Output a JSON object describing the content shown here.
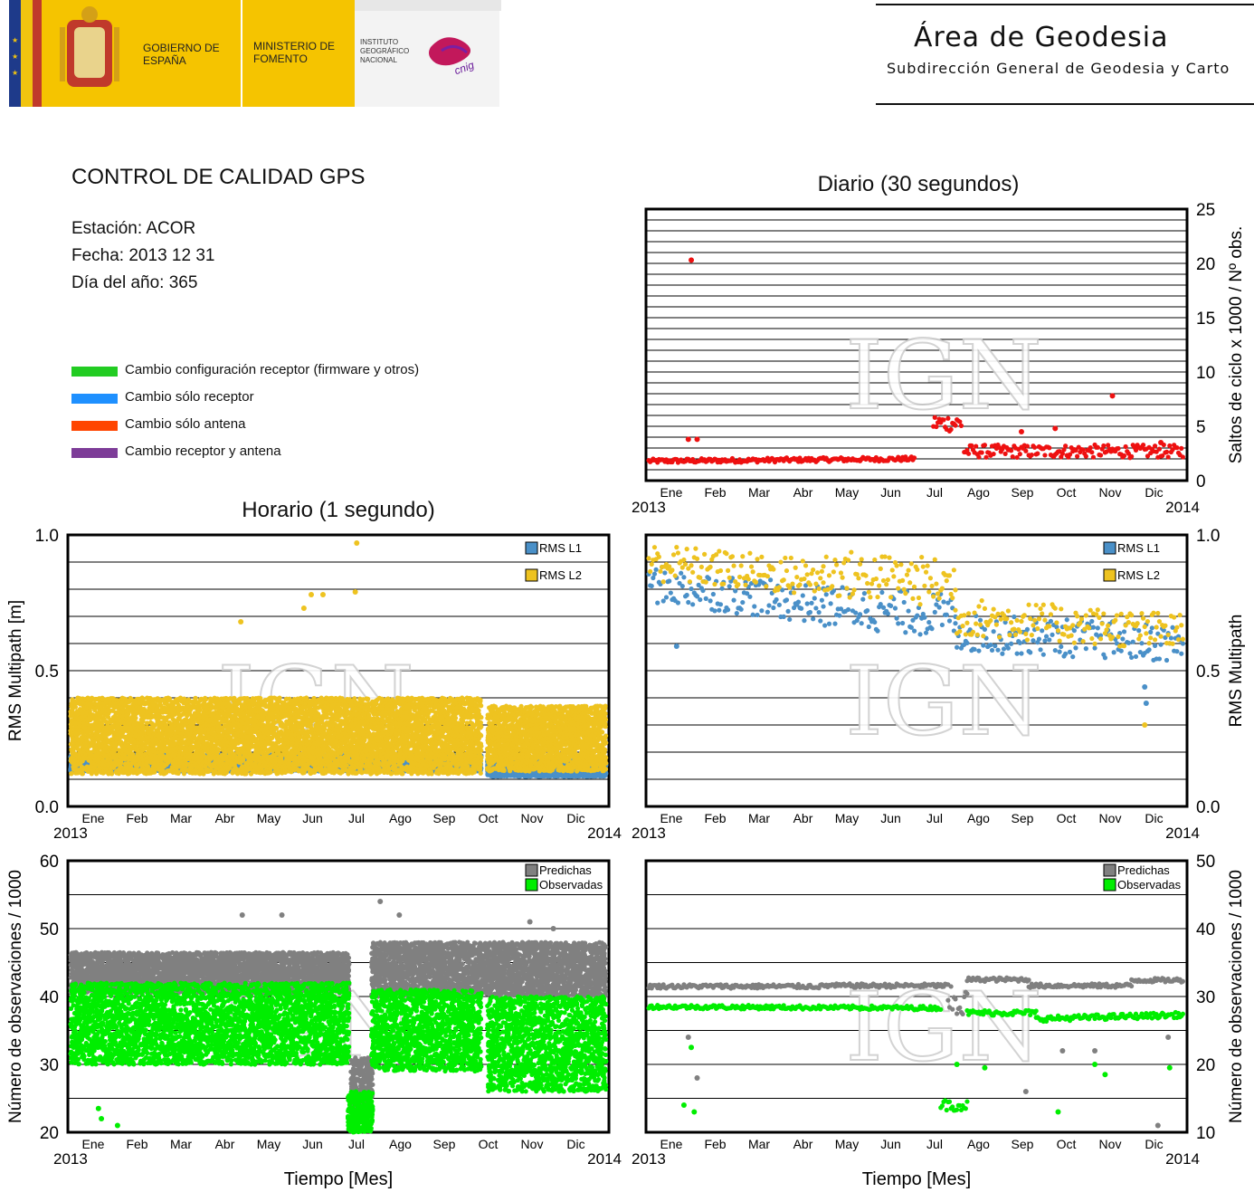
{
  "header": {
    "gobierno": "GOBIERNO DE ESPAÑA",
    "ministerio": "MINISTERIO DE FOMENTO",
    "instituto": "INSTITUTO GEOGRÁFICO NACIONAL",
    "cnig": "cnig",
    "area_title": "Área de Geodesia",
    "area_subtitle": "Subdirección General de Geodesia y Carto"
  },
  "info": {
    "title": "CONTROL DE CALIDAD GPS",
    "station": "Estación: ACOR",
    "date": "Fecha: 2013 12 31",
    "doy": "Día del año: 365"
  },
  "legend": [
    {
      "label": "Cambio configuración receptor (firmware y otros)",
      "color": "#22cc22"
    },
    {
      "label": "Cambio sólo receptor",
      "color": "#1e90ff"
    },
    {
      "label": "Cambio sólo antena",
      "color": "#ff4500"
    },
    {
      "label": "Cambio receptor y antena",
      "color": "#7d3c98"
    }
  ],
  "section_titles": {
    "daily": "Diario (30 segundos)",
    "hourly": "Horario (1 segundo)"
  },
  "months": [
    "Ene",
    "Feb",
    "Mar",
    "Abr",
    "May",
    "Jun",
    "Jul",
    "Ago",
    "Sep",
    "Oct",
    "Nov",
    "Dic"
  ],
  "year_start": "2013",
  "year_end": "2014",
  "watermark": "IGN",
  "chart_data": [
    {
      "id": "daily-cycle-slips",
      "type": "scatter",
      "ylabel": "Saltos de ciclo x 1000 / Nº obs.",
      "ylim": [
        0,
        25
      ],
      "yticks": [
        0,
        5,
        10,
        15,
        20,
        25
      ],
      "x_unit": "day of year 2013",
      "series": [
        {
          "color": "#ee1111",
          "segments": [
            {
              "x0": 1,
              "x1": 182,
              "y0": 1.8,
              "y1": 2.0,
              "jitter": 0.2
            },
            {
              "x0": 195,
              "x1": 214,
              "y0": 5.3,
              "y1": 5.3,
              "jitter": 0.8
            },
            {
              "x0": 216,
              "x1": 365,
              "y0": 2.7,
              "y1": 2.7,
              "jitter": 0.6
            }
          ],
          "outliers": [
            [
              30,
              20.3
            ],
            [
              28,
              3.8
            ],
            [
              34,
              3.8
            ],
            [
              255,
              4.5
            ],
            [
              278,
              4.8
            ],
            [
              317,
              7.8
            ],
            [
              350,
              3.5
            ]
          ]
        }
      ]
    },
    {
      "id": "hourly-rms-multipath",
      "type": "scatter",
      "ylabel": "RMS Multipath [m]",
      "ylim": [
        0.0,
        1.0
      ],
      "yticks": [
        0.0,
        0.5,
        1.0
      ],
      "legend": [
        "RMS L1",
        "RMS L2"
      ],
      "series": [
        {
          "name": "RMS L1",
          "color": "#4a90c8",
          "segments": [
            {
              "x0": 1,
              "x1": 280,
              "y0": 0.16,
              "y1": 0.16,
              "jitter": 0.03
            },
            {
              "x0": 285,
              "x1": 365,
              "y0": 0.14,
              "y1": 0.14,
              "jitter": 0.03
            }
          ]
        },
        {
          "name": "RMS L2",
          "color": "#eec320",
          "segments": [
            {
              "x0": 1,
              "x1": 280,
              "y0": 0.26,
              "y1": 0.26,
              "jitter": 0.14
            },
            {
              "x0": 285,
              "x1": 365,
              "y0": 0.25,
              "y1": 0.25,
              "jitter": 0.12
            }
          ],
          "outliers": [
            [
              165,
              0.78
            ],
            [
              173,
              0.78
            ],
            [
              195,
              0.79
            ],
            [
              196,
              0.97
            ],
            [
              160,
              0.73
            ],
            [
              117,
              0.68
            ]
          ]
        }
      ]
    },
    {
      "id": "daily-rms-multipath",
      "type": "scatter",
      "ylabel": "RMS Multipath",
      "ylim": [
        0.0,
        1.0
      ],
      "yticks": [
        0.0,
        0.5,
        1.0
      ],
      "legend": [
        "RMS L1",
        "RMS L2"
      ],
      "series": [
        {
          "name": "RMS L1",
          "color": "#4a90c8",
          "segments": [
            {
              "x0": 1,
              "x1": 120,
              "y0": 0.82,
              "y1": 0.74,
              "jitter": 0.07
            },
            {
              "x0": 120,
              "x1": 210,
              "y0": 0.74,
              "y1": 0.7,
              "jitter": 0.08
            },
            {
              "x0": 210,
              "x1": 365,
              "y0": 0.64,
              "y1": 0.6,
              "jitter": 0.07
            }
          ],
          "outliers": [
            [
              339,
              0.44
            ],
            [
              340,
              0.38
            ],
            [
              20,
              0.59
            ]
          ]
        },
        {
          "name": "RMS L2",
          "color": "#eec320",
          "segments": [
            {
              "x0": 1,
              "x1": 120,
              "y0": 0.9,
              "y1": 0.84,
              "jitter": 0.07
            },
            {
              "x0": 120,
              "x1": 210,
              "y0": 0.86,
              "y1": 0.82,
              "jitter": 0.09
            },
            {
              "x0": 210,
              "x1": 365,
              "y0": 0.7,
              "y1": 0.64,
              "jitter": 0.07
            }
          ],
          "outliers": [
            [
              339,
              0.3
            ]
          ]
        }
      ]
    },
    {
      "id": "hourly-observations",
      "type": "scatter",
      "xlabel": "Tiempo [Mes]",
      "ylabel": "Número de observaciones / 1000",
      "ylim": [
        20,
        60
      ],
      "yticks": [
        20,
        30,
        40,
        50,
        60
      ],
      "legend": [
        "Predichas",
        "Observadas"
      ],
      "series": [
        {
          "name": "Predichas",
          "color": "#808080",
          "segments": [
            {
              "x0": 1,
              "x1": 190,
              "y0": 43.5,
              "y1": 43.5,
              "jitter": 3.0
            },
            {
              "x0": 192,
              "x1": 206,
              "y0": 27,
              "y1": 27,
              "jitter": 4
            },
            {
              "x0": 206,
              "x1": 365,
              "y0": 44,
              "y1": 44,
              "jitter": 4.0
            }
          ],
          "outliers": [
            [
              118,
              52
            ],
            [
              145,
              52
            ],
            [
              212,
              54
            ],
            [
              225,
              52
            ],
            [
              314,
              51
            ],
            [
              330,
              50
            ]
          ]
        },
        {
          "name": "Observadas",
          "color": "#00ee00",
          "segments": [
            {
              "x0": 1,
              "x1": 190,
              "y0": 36,
              "y1": 36,
              "jitter": 6
            },
            {
              "x0": 190,
              "x1": 206,
              "y0": 23,
              "y1": 23,
              "jitter": 3
            },
            {
              "x0": 206,
              "x1": 280,
              "y0": 35,
              "y1": 35,
              "jitter": 6
            },
            {
              "x0": 285,
              "x1": 365,
              "y0": 33,
              "y1": 33,
              "jitter": 7
            }
          ],
          "outliers": [
            [
              22,
              22
            ],
            [
              33,
              21
            ],
            [
              20,
              23.5
            ]
          ]
        }
      ]
    },
    {
      "id": "daily-observations",
      "type": "scatter",
      "xlabel": "Tiempo [Mes]",
      "ylabel": "Número de observaciones / 1000",
      "ylim": [
        10,
        50
      ],
      "yticks": [
        10,
        20,
        30,
        40,
        50
      ],
      "legend": [
        "Predichas",
        "Observadas"
      ],
      "series": [
        {
          "name": "Predichas",
          "color": "#808080",
          "segments": [
            {
              "x0": 1,
              "x1": 120,
              "y0": 31.5,
              "y1": 31.5,
              "jitter": 0.3
            },
            {
              "x0": 120,
              "x1": 205,
              "y0": 31.6,
              "y1": 31.6,
              "jitter": 0.3
            },
            {
              "x0": 205,
              "x1": 218,
              "y0": 29,
              "y1": 29,
              "jitter": 2.5
            },
            {
              "x0": 218,
              "x1": 260,
              "y0": 32.5,
              "y1": 32.5,
              "jitter": 0.3
            },
            {
              "x0": 260,
              "x1": 330,
              "y0": 31.6,
              "y1": 31.6,
              "jitter": 0.3
            },
            {
              "x0": 330,
              "x1": 365,
              "y0": 32.4,
              "y1": 32.4,
              "jitter": 0.3
            }
          ],
          "outliers": [
            [
              28,
              24
            ],
            [
              34,
              18
            ],
            [
              258,
              16
            ],
            [
              283,
              22
            ],
            [
              305,
              22
            ],
            [
              348,
              11
            ],
            [
              355,
              24
            ]
          ]
        },
        {
          "name": "Observadas",
          "color": "#00ee00",
          "segments": [
            {
              "x0": 1,
              "x1": 200,
              "y0": 28.5,
              "y1": 28.3,
              "jitter": 0.3
            },
            {
              "x0": 200,
              "x1": 218,
              "y0": 14,
              "y1": 14,
              "jitter": 0.8
            },
            {
              "x0": 218,
              "x1": 265,
              "y0": 27.6,
              "y1": 27.6,
              "jitter": 0.4
            },
            {
              "x0": 265,
              "x1": 365,
              "y0": 26.7,
              "y1": 27.3,
              "jitter": 0.4
            }
          ],
          "outliers": [
            [
              25,
              14
            ],
            [
              30,
              22.5
            ],
            [
              32,
              13
            ],
            [
              211,
              20
            ],
            [
              230,
              19.5
            ],
            [
              280,
              13
            ],
            [
              305,
              20
            ],
            [
              312,
              18.5
            ],
            [
              356,
              19.5
            ]
          ]
        }
      ]
    }
  ]
}
